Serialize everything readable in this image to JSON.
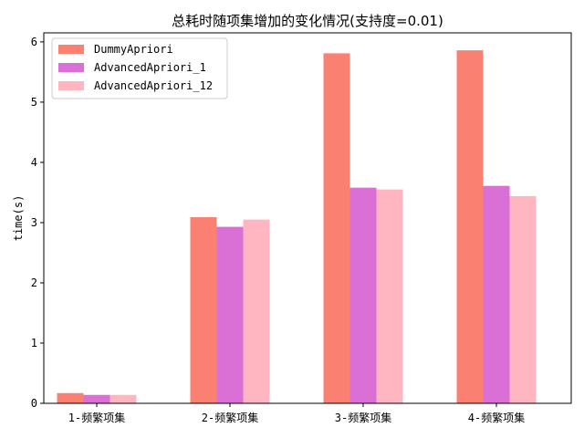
{
  "chart_data": {
    "type": "bar",
    "title": "总耗时随项集增加的变化情况(支持度=0.01)",
    "xlabel": "",
    "ylabel": "time(s)",
    "categories": [
      "1-频繁项集",
      "2-频繁项集",
      "3-频繁项集",
      "4-频繁项集"
    ],
    "series": [
      {
        "name": "DummyApriori",
        "color": "#fa8072",
        "values": [
          0.17,
          3.09,
          5.81,
          5.86
        ]
      },
      {
        "name": "AdvancedApriori_1",
        "color": "#da70d6",
        "values": [
          0.14,
          2.93,
          3.58,
          3.61
        ]
      },
      {
        "name": "AdvancedApriori_12",
        "color": "#ffb6c1",
        "values": [
          0.14,
          3.05,
          3.55,
          3.44
        ]
      }
    ],
    "ylim": [
      0,
      6.15
    ],
    "yticks": [
      0,
      1,
      2,
      3,
      4,
      5,
      6
    ],
    "legend": "top-left",
    "grid": false
  }
}
